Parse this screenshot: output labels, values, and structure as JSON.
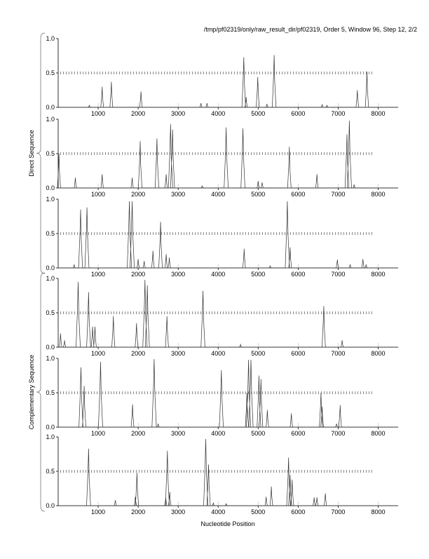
{
  "chart_data": {
    "type": "line",
    "title": "/tmp/pf02319/only/raw_result_dir/pf02319, Order 5, Window 96, Step 12, 2/2",
    "xlabel": "Nucleotide Position",
    "xlim": [
      0,
      8500
    ],
    "ylim": [
      0,
      1
    ],
    "xticks": [
      1000,
      2000,
      3000,
      4000,
      5000,
      6000,
      7000,
      8000
    ],
    "yticks": [
      "0.0",
      "0.5",
      "1.0"
    ],
    "threshold": 0.5,
    "groups": [
      {
        "label": "Direct Sequence",
        "panels": [
          0,
          1,
          2
        ]
      },
      {
        "label": "Complementary Sequence",
        "panels": [
          3,
          4,
          5
        ]
      }
    ],
    "panels": [
      {
        "name": "direct-frame-1",
        "peaks": [
          [
            780,
            0.03
          ],
          [
            1100,
            0.3
          ],
          [
            1330,
            0.37
          ],
          [
            2070,
            0.23
          ],
          [
            3570,
            0.06
          ],
          [
            3720,
            0.06
          ],
          [
            4640,
            0.73
          ],
          [
            4700,
            0.15
          ],
          [
            4990,
            0.44
          ],
          [
            5220,
            0.05
          ],
          [
            5400,
            0.76
          ],
          [
            6600,
            0.04
          ],
          [
            6720,
            0.03
          ],
          [
            7480,
            0.25
          ],
          [
            7720,
            0.52
          ]
        ]
      },
      {
        "name": "direct-frame-2",
        "peaks": [
          [
            20,
            0.5
          ],
          [
            430,
            0.15
          ],
          [
            1100,
            0.2
          ],
          [
            1850,
            0.15
          ],
          [
            2050,
            0.68
          ],
          [
            2470,
            0.72
          ],
          [
            2700,
            0.2
          ],
          [
            2810,
            0.93
          ],
          [
            2860,
            0.85
          ],
          [
            3600,
            0.03
          ],
          [
            4200,
            0.88
          ],
          [
            4620,
            0.87
          ],
          [
            5000,
            0.1
          ],
          [
            5100,
            0.08
          ],
          [
            5780,
            0.6
          ],
          [
            6470,
            0.2
          ],
          [
            7220,
            0.78
          ],
          [
            7280,
            0.98
          ],
          [
            7400,
            0.05
          ]
        ]
      },
      {
        "name": "direct-frame-3",
        "peaks": [
          [
            400,
            0.05
          ],
          [
            560,
            0.85
          ],
          [
            720,
            0.88
          ],
          [
            1780,
            0.97
          ],
          [
            1850,
            0.97
          ],
          [
            2000,
            0.13
          ],
          [
            2150,
            0.1
          ],
          [
            2370,
            0.25
          ],
          [
            2560,
            0.67
          ],
          [
            2700,
            0.2
          ],
          [
            2780,
            0.15
          ],
          [
            4650,
            0.28
          ],
          [
            5300,
            0.03
          ],
          [
            5730,
            0.97
          ],
          [
            5800,
            0.3
          ],
          [
            6980,
            0.12
          ],
          [
            7300,
            0.05
          ],
          [
            7620,
            0.13
          ],
          [
            7700,
            0.05
          ]
        ]
      },
      {
        "name": "complementary-frame-1",
        "peaks": [
          [
            60,
            0.2
          ],
          [
            160,
            0.1
          ],
          [
            500,
            0.95
          ],
          [
            760,
            0.8
          ],
          [
            860,
            0.3
          ],
          [
            920,
            0.3
          ],
          [
            1380,
            0.45
          ],
          [
            1960,
            0.35
          ],
          [
            2170,
            0.98
          ],
          [
            2230,
            0.9
          ],
          [
            2720,
            0.45
          ],
          [
            3620,
            0.82
          ],
          [
            4560,
            0.04
          ],
          [
            6640,
            0.6
          ],
          [
            7100,
            0.1
          ]
        ]
      },
      {
        "name": "complementary-frame-2",
        "peaks": [
          [
            570,
            0.87
          ],
          [
            650,
            0.6
          ],
          [
            1060,
            0.95
          ],
          [
            1860,
            0.33
          ],
          [
            2400,
            0.99
          ],
          [
            2500,
            0.05
          ],
          [
            4080,
            0.83
          ],
          [
            4720,
            0.5
          ],
          [
            4760,
            0.98
          ],
          [
            4820,
            0.98
          ],
          [
            5020,
            0.75
          ],
          [
            5070,
            0.7
          ],
          [
            5230,
            0.25
          ],
          [
            5830,
            0.2
          ],
          [
            6570,
            0.5
          ],
          [
            6600,
            0.3
          ],
          [
            6960,
            0.05
          ],
          [
            7050,
            0.32
          ]
        ]
      },
      {
        "name": "complementary-frame-3",
        "peaks": [
          [
            760,
            0.83
          ],
          [
            1430,
            0.08
          ],
          [
            1930,
            0.13
          ],
          [
            1970,
            0.48
          ],
          [
            2690,
            0.12
          ],
          [
            2730,
            0.8
          ],
          [
            2790,
            0.2
          ],
          [
            3690,
            0.97
          ],
          [
            3760,
            0.6
          ],
          [
            3880,
            0.04
          ],
          [
            4200,
            0.03
          ],
          [
            5200,
            0.13
          ],
          [
            5330,
            0.28
          ],
          [
            5760,
            0.7
          ],
          [
            5800,
            0.45
          ],
          [
            5850,
            0.38
          ],
          [
            6400,
            0.12
          ],
          [
            6470,
            0.12
          ],
          [
            6680,
            0.18
          ]
        ]
      }
    ]
  }
}
